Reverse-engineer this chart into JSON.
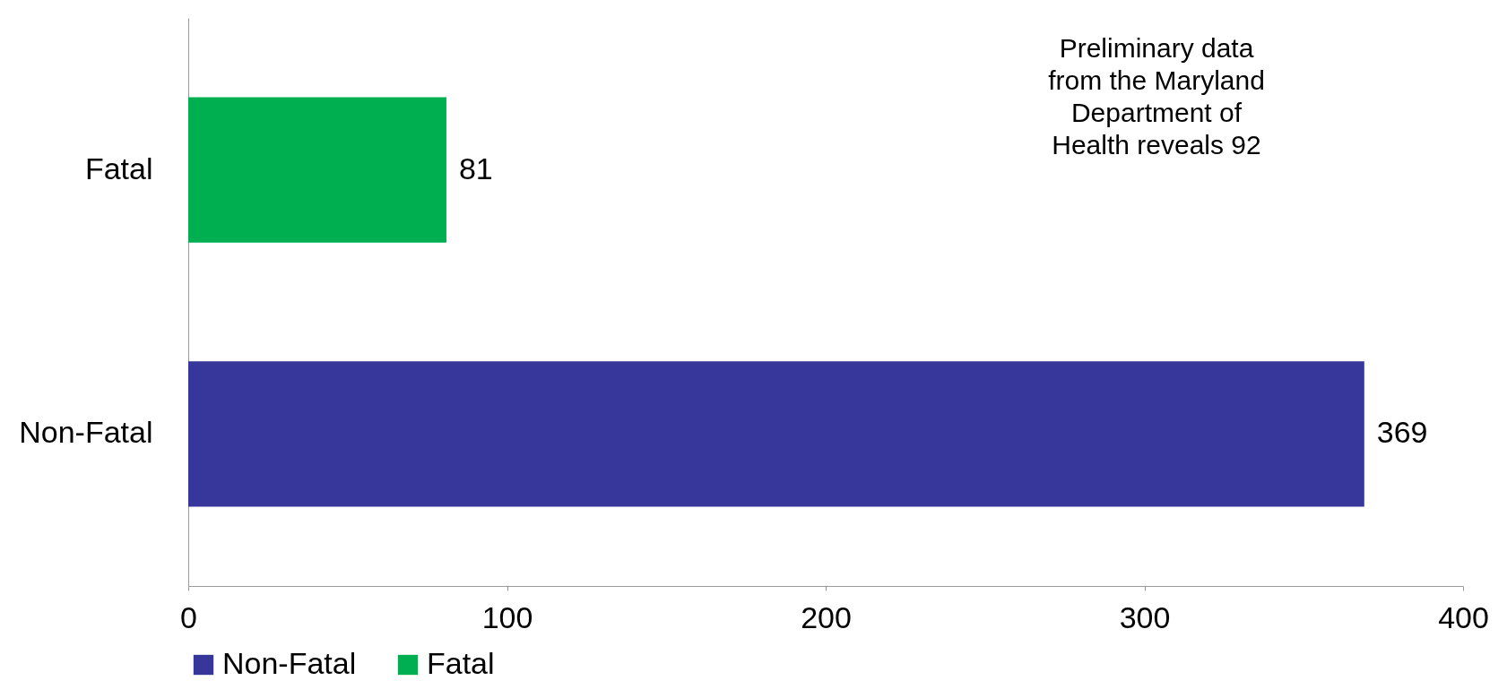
{
  "chart_data": {
    "type": "bar",
    "orientation": "horizontal",
    "stacked": true,
    "categories": [
      "Fatal",
      "Non-Fatal"
    ],
    "series": [
      {
        "name": "Non-Fatal",
        "color": "#37369a",
        "values": [
          null,
          369
        ]
      },
      {
        "name": "Fatal",
        "color": "#00b050",
        "values": [
          81,
          null
        ]
      }
    ],
    "xlim": [
      0,
      400
    ],
    "xticks": [
      0,
      100,
      200,
      300,
      400
    ],
    "grid": false,
    "data_labels": true,
    "legend": "bottom",
    "annotations": [
      "Preliminary data from the Maryland Department of Health reveals 92"
    ]
  }
}
